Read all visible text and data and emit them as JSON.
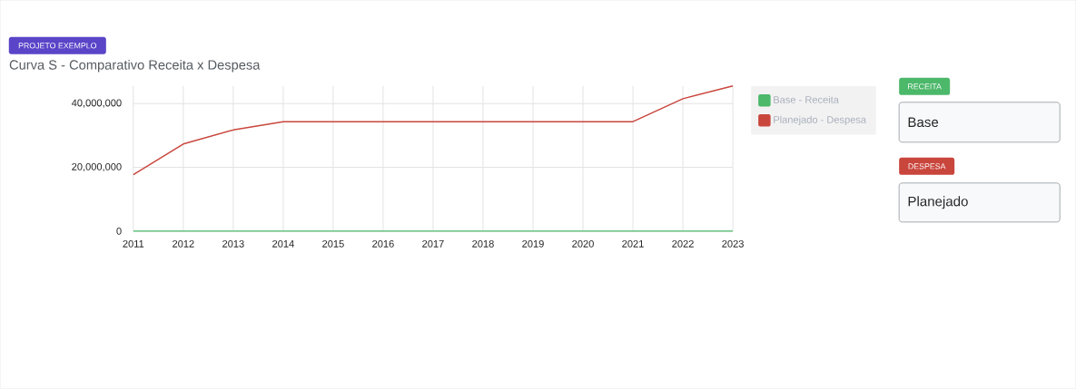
{
  "chart_data": {
    "type": "line",
    "title": "Curva S - Comparativo Receita x Despesa",
    "categories": [
      "2011",
      "2012",
      "2013",
      "2014",
      "2015",
      "2016",
      "2017",
      "2018",
      "2019",
      "2020",
      "2021",
      "2022",
      "2023"
    ],
    "series": [
      {
        "name": "Base - Receita",
        "color": "#4cb86a",
        "values": [
          0,
          0,
          0,
          0,
          0,
          0,
          0,
          0,
          0,
          0,
          0,
          0,
          0
        ]
      },
      {
        "name": "Planejado - Despesa",
        "color": "#c9463d",
        "values": [
          17700000,
          27300000,
          31700000,
          34300000,
          34300000,
          34300000,
          34300000,
          34300000,
          34300000,
          34300000,
          34300000,
          41500000,
          45500000
        ]
      }
    ],
    "ylim": [
      0,
      45500000
    ],
    "yticks": [
      {
        "value": 0,
        "label": "0"
      },
      {
        "value": 20000000,
        "label": "20,000,000"
      },
      {
        "value": 40000000,
        "label": "40,000,000"
      }
    ],
    "grid": true,
    "legend": "right",
    "marker": "none",
    "annotations": [
      "PROJETO EXEMPLO",
      "RECEITA",
      "Base",
      "DESPESA",
      "Planejado"
    ]
  }
}
